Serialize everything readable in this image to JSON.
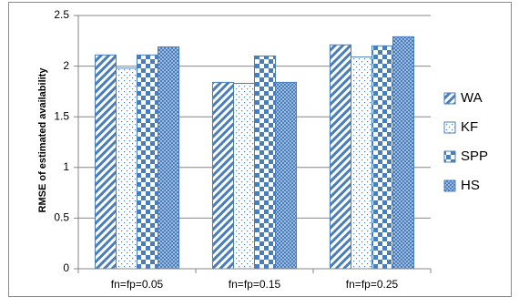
{
  "chart_data": {
    "type": "bar",
    "title": "",
    "xlabel": "",
    "ylabel": "RMSE of estimated availability",
    "ylim": [
      0,
      2.5
    ],
    "yticks": [
      0,
      0.5,
      1,
      1.5,
      2,
      2.5
    ],
    "ytick_labels": [
      "0",
      "0.5",
      "1",
      "1.5",
      "2",
      "2.5"
    ],
    "grid": "horizontal",
    "legend_position": "right",
    "categories": [
      "fn=fp=0.05",
      "fn=fp=0.15",
      "fn=fp=0.25"
    ],
    "series": [
      {
        "name": "WA",
        "values": [
          2.11,
          1.84,
          2.21
        ],
        "pattern": "diagonal-stripes"
      },
      {
        "name": "KF",
        "values": [
          1.98,
          1.83,
          2.09
        ],
        "pattern": "sparse-dots"
      },
      {
        "name": "SPP",
        "values": [
          2.11,
          2.1,
          2.2
        ],
        "pattern": "checkerboard"
      },
      {
        "name": "HS",
        "values": [
          2.19,
          1.84,
          2.29
        ],
        "pattern": "fine-grid"
      }
    ],
    "colors": {
      "bar": "#4a7ebb",
      "bar_light": "#ffffff",
      "grid": "#868686",
      "axis": "#868686"
    }
  }
}
